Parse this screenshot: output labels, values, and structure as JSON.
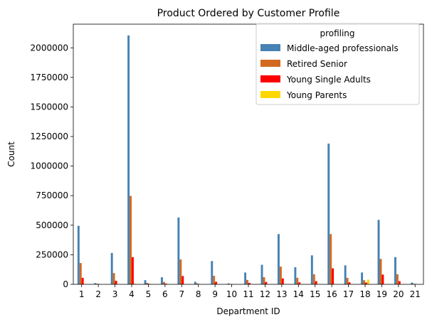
{
  "chart_data": {
    "type": "bar",
    "title": "Product Ordered by Customer Profile",
    "xlabel": "Department ID",
    "ylabel": "Count",
    "ylim": [
      0,
      2200000
    ],
    "yticks": [
      0,
      250000,
      500000,
      750000,
      1000000,
      1250000,
      1500000,
      1750000,
      2000000
    ],
    "ytick_labels": [
      "0",
      "250000",
      "500000",
      "750000",
      "1000000",
      "1250000",
      "1500000",
      "1750000",
      "2000000"
    ],
    "categories": [
      "1",
      "2",
      "3",
      "4",
      "5",
      "6",
      "7",
      "8",
      "9",
      "10",
      "11",
      "12",
      "13",
      "14",
      "15",
      "16",
      "17",
      "18",
      "19",
      "20",
      "21"
    ],
    "legend": {
      "title": "profiling",
      "placement": "top-right"
    },
    "series": [
      {
        "name": "Middle-aged professionals",
        "color": "#4682b4",
        "values": [
          495000,
          10000,
          265000,
          2105000,
          35000,
          60000,
          565000,
          22000,
          197000,
          8000,
          100000,
          165000,
          425000,
          145000,
          245000,
          1190000,
          160000,
          100000,
          545000,
          230000,
          15000
        ]
      },
      {
        "name": "Retired Senior",
        "color": "#d2691e",
        "values": [
          180000,
          5000,
          95000,
          748000,
          12000,
          20000,
          210000,
          8000,
          72000,
          3000,
          37000,
          60000,
          150000,
          55000,
          85000,
          425000,
          55000,
          35000,
          215000,
          85000,
          5000
        ]
      },
      {
        "name": "Young Single Adults",
        "color": "#ff0000",
        "values": [
          55000,
          2000,
          30000,
          230000,
          4000,
          6000,
          70000,
          3000,
          22000,
          1000,
          12000,
          20000,
          50000,
          17000,
          27000,
          135000,
          17000,
          15000,
          82000,
          27000,
          2000
        ]
      },
      {
        "name": "Young Parents",
        "color": "#ffd700",
        "values": [
          1500,
          200,
          800,
          6000,
          100,
          200,
          1800,
          100,
          600,
          50,
          300,
          500,
          1300,
          400,
          700,
          3500,
          400,
          40000,
          2200,
          700,
          50
        ]
      }
    ]
  }
}
